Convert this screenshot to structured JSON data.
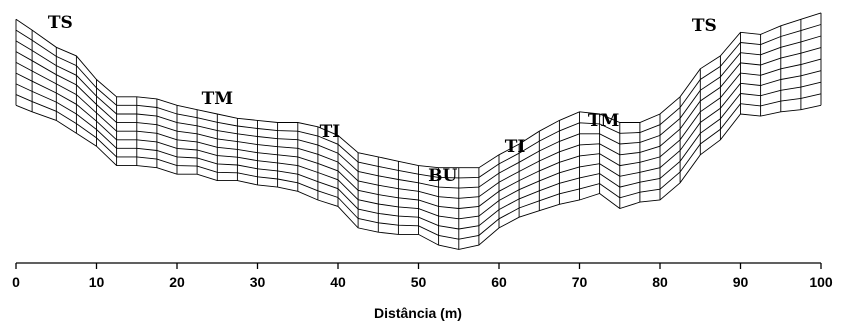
{
  "figure": {
    "zone_labels": [
      {
        "key": "ts_left",
        "text": "TS",
        "x_m": 5.5
      },
      {
        "key": "tm_left",
        "text": "TM",
        "x_m": 25
      },
      {
        "key": "ti_left",
        "text": "TI",
        "x_m": 39
      },
      {
        "key": "bu",
        "text": "BU",
        "x_m": 53
      },
      {
        "key": "ti_right",
        "text": "TI",
        "x_m": 62
      },
      {
        "key": "tm_right",
        "text": "TM",
        "x_m": 73
      },
      {
        "key": "ts_right",
        "text": "TS",
        "x_m": 85.5
      }
    ],
    "x_axis": {
      "title": "Distância (m)",
      "ticks": [
        "0",
        "10",
        "20",
        "30",
        "40",
        "50",
        "60",
        "70",
        "80",
        "90",
        "100"
      ],
      "range": [
        0,
        100
      ]
    },
    "mesh": {
      "layers": 8,
      "x_m": [
        0,
        2,
        5,
        7.5,
        10,
        12.5,
        15,
        17.5,
        20,
        22.5,
        25,
        27.5,
        30,
        32.5,
        35,
        37.5,
        40,
        42.5,
        45,
        47.5,
        50,
        52.5,
        55,
        57.5,
        60,
        62.5,
        65,
        67.5,
        70,
        72.5,
        75,
        77.5,
        80,
        82.5,
        85,
        87.5,
        90,
        92.5,
        95,
        97.5,
        100
      ],
      "top_surface_rel": [
        0.09,
        0.14,
        0.22,
        0.26,
        0.37,
        0.45,
        0.45,
        0.46,
        0.49,
        0.51,
        0.53,
        0.55,
        0.56,
        0.57,
        0.57,
        0.59,
        0.63,
        0.71,
        0.73,
        0.75,
        0.77,
        0.78,
        0.78,
        0.78,
        0.72,
        0.67,
        0.61,
        0.56,
        0.52,
        0.53,
        0.57,
        0.57,
        0.53,
        0.45,
        0.32,
        0.26,
        0.15,
        0.16,
        0.12,
        0.09,
        0.06
      ],
      "bottom_surface_rel": [
        0.49,
        0.52,
        0.56,
        0.62,
        0.68,
        0.77,
        0.77,
        0.78,
        0.81,
        0.81,
        0.84,
        0.84,
        0.86,
        0.87,
        0.89,
        0.93,
        0.96,
        1.06,
        1.08,
        1.09,
        1.09,
        1.14,
        1.16,
        1.14,
        1.06,
        1.01,
        0.98,
        0.95,
        0.93,
        0.9,
        0.97,
        0.94,
        0.93,
        0.85,
        0.72,
        0.65,
        0.53,
        0.54,
        0.52,
        0.51,
        0.49
      ]
    }
  }
}
